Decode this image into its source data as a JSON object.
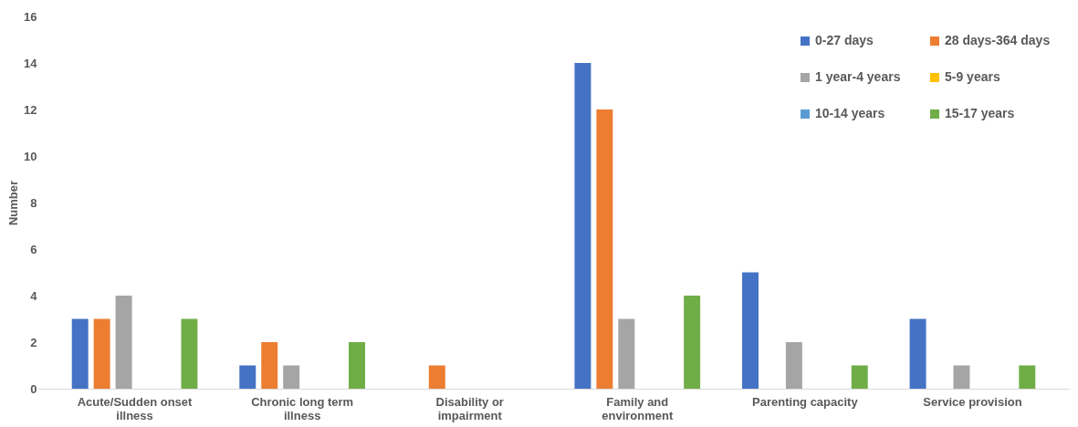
{
  "chart_data": {
    "type": "bar",
    "ylabel": "Number",
    "categories": [
      "Acute/Sudden onset illness",
      "Chronic long term illness",
      "Disability or impairment",
      "Family and environment",
      "Parenting capacity",
      "Service provision"
    ],
    "series": [
      {
        "name": "0-27 days",
        "color": "#4472c4",
        "values": [
          3,
          1,
          0,
          14,
          5,
          3
        ]
      },
      {
        "name": "28 days-364 days",
        "color": "#ed7d31",
        "values": [
          3,
          2,
          1,
          12,
          0,
          0
        ]
      },
      {
        "name": "1 year-4 years",
        "color": "#a5a5a5",
        "values": [
          4,
          1,
          0,
          3,
          2,
          1
        ]
      },
      {
        "name": "5-9 years",
        "color": "#ffc000",
        "values": [
          0,
          0,
          0,
          0,
          0,
          0
        ]
      },
      {
        "name": "10-14 years",
        "color": "#5b9bd5",
        "values": [
          0,
          0,
          0,
          0,
          0,
          0
        ]
      },
      {
        "name": "15-17 years",
        "color": "#70ad47",
        "values": [
          3,
          2,
          0,
          4,
          1,
          1
        ]
      }
    ],
    "ylim": [
      0,
      16
    ],
    "yticks": [
      0,
      2,
      4,
      6,
      8,
      10,
      12,
      14,
      16
    ],
    "grid": false,
    "legend": "top right"
  }
}
